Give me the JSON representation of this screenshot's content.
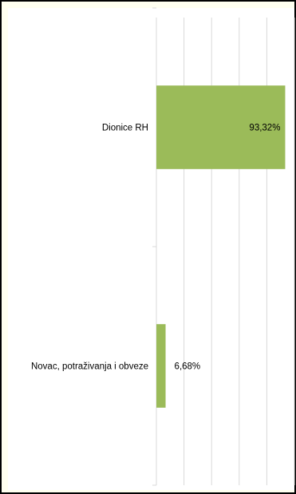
{
  "chart_data": {
    "type": "bar",
    "orientation": "horizontal",
    "categories": [
      "Dionice RH",
      "Novac, potraživanja i obveze"
    ],
    "values": [
      93.32,
      6.68
    ],
    "data_labels": [
      "93,32%",
      "6,68%"
    ],
    "xlim": [
      0,
      100
    ],
    "grid": true,
    "legend": "none",
    "bar_color": "#9bbb59",
    "gridline_color": "#d9d9d9"
  }
}
